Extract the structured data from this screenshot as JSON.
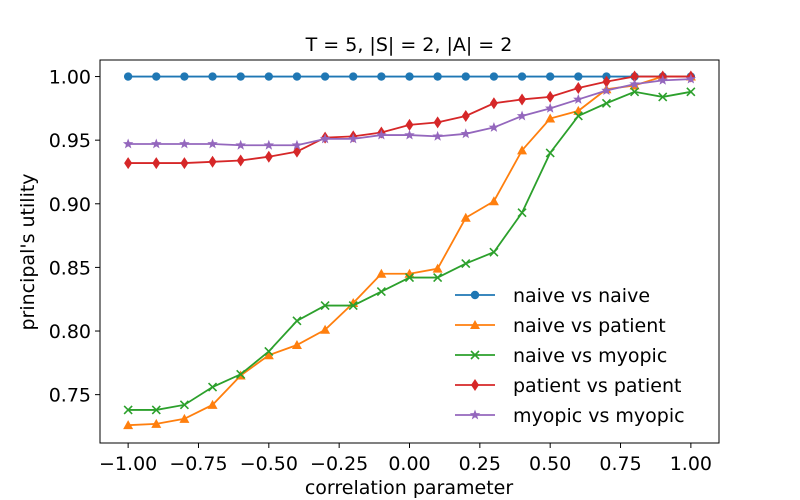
{
  "chart_data": {
    "type": "line",
    "title": "T = 5, |S| = 2, |A| = 2",
    "xlabel": "correlation parameter",
    "ylabel": "principal's utility",
    "xlim": [
      -1.1,
      1.1
    ],
    "ylim": [
      0.712,
      1.013
    ],
    "xticks": [
      -1.0,
      -0.75,
      -0.5,
      -0.25,
      0.0,
      0.25,
      0.5,
      0.75,
      1.0
    ],
    "xtick_labels": [
      "−1.00",
      "−0.75",
      "−0.50",
      "−0.25",
      "0.00",
      "0.25",
      "0.50",
      "0.75",
      "1.00"
    ],
    "yticks": [
      0.75,
      0.8,
      0.85,
      0.9,
      0.95,
      1.0
    ],
    "ytick_labels": [
      "0.75",
      "0.80",
      "0.85",
      "0.90",
      "0.95",
      "1.00"
    ],
    "grid": false,
    "legend_position": "lower-right",
    "x": [
      -1.0,
      -0.9,
      -0.8,
      -0.7,
      -0.6,
      -0.5,
      -0.4,
      -0.3,
      -0.2,
      -0.1,
      0.0,
      0.1,
      0.2,
      0.3,
      0.4,
      0.5,
      0.6,
      0.7,
      0.8,
      0.9,
      1.0
    ],
    "series": [
      {
        "name": "naive vs naive",
        "color": "#1f77b4",
        "marker": "circle",
        "values": [
          1.0,
          1.0,
          1.0,
          1.0,
          1.0,
          1.0,
          1.0,
          1.0,
          1.0,
          1.0,
          1.0,
          1.0,
          1.0,
          1.0,
          1.0,
          1.0,
          1.0,
          1.0,
          1.0,
          1.0,
          1.0
        ]
      },
      {
        "name": "naive vs patient",
        "color": "#ff7f0e",
        "marker": "triangle",
        "values": [
          0.726,
          0.727,
          0.731,
          0.742,
          0.765,
          0.781,
          0.789,
          0.801,
          0.822,
          0.845,
          0.845,
          0.849,
          0.889,
          0.902,
          0.942,
          0.967,
          0.973,
          0.99,
          0.993,
          1.0,
          1.0
        ]
      },
      {
        "name": "naive vs myopic",
        "color": "#2ca02c",
        "marker": "x",
        "values": [
          0.738,
          0.738,
          0.742,
          0.756,
          0.766,
          0.784,
          0.808,
          0.82,
          0.82,
          0.831,
          0.842,
          0.842,
          0.853,
          0.862,
          0.893,
          0.94,
          0.969,
          0.979,
          0.988,
          0.984,
          0.988
        ]
      },
      {
        "name": "patient vs patient",
        "color": "#d62728",
        "marker": "diamond",
        "values": [
          0.932,
          0.932,
          0.932,
          0.933,
          0.934,
          0.937,
          0.941,
          0.952,
          0.953,
          0.956,
          0.962,
          0.964,
          0.969,
          0.979,
          0.982,
          0.984,
          0.991,
          0.996,
          1.0,
          1.0,
          1.0
        ]
      },
      {
        "name": "myopic vs myopic",
        "color": "#9467bd",
        "marker": "star",
        "values": [
          0.947,
          0.947,
          0.947,
          0.947,
          0.946,
          0.946,
          0.946,
          0.951,
          0.951,
          0.954,
          0.954,
          0.953,
          0.955,
          0.96,
          0.969,
          0.975,
          0.982,
          0.989,
          0.994,
          0.997,
          0.998
        ]
      }
    ]
  }
}
